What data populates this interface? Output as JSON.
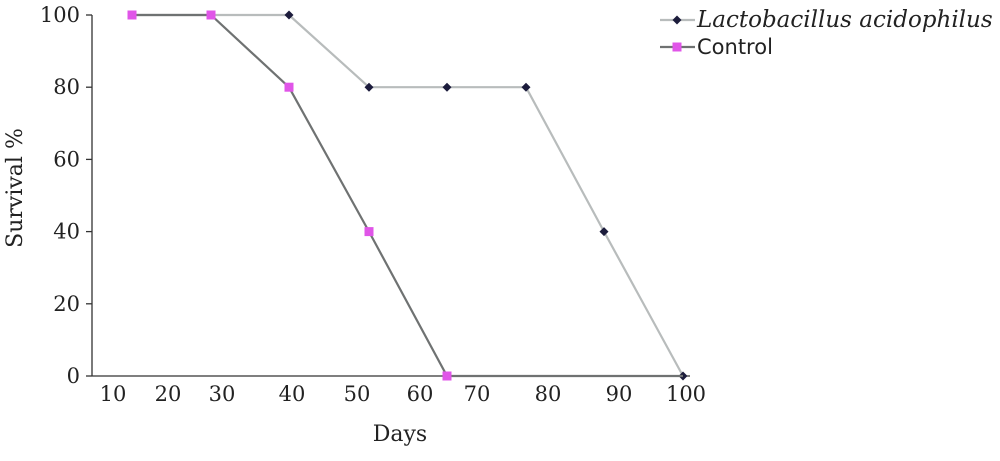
{
  "chart_data": {
    "type": "line",
    "xlabel": "Days",
    "ylabel": "Survival %",
    "xticks": [
      10,
      20,
      30,
      40,
      50,
      60,
      70,
      80,
      90,
      100
    ],
    "yticks": [
      0,
      20,
      40,
      60,
      80,
      100
    ],
    "xlim": [
      5,
      100
    ],
    "ylim": [
      0,
      100
    ],
    "grid": false,
    "legend_position": "top-right",
    "series": [
      {
        "name": "Lactobacillus acidophilus",
        "name_style": "italic",
        "color": "#b8bcbc",
        "marker": "diamond",
        "marker_color": "#1c1c3c",
        "x": [
          10,
          30,
          40,
          51,
          62,
          74,
          85,
          96
        ],
        "y": [
          100,
          100,
          100,
          80,
          80,
          80,
          40,
          0
        ]
      },
      {
        "name": "Control",
        "name_style": "normal",
        "color": "#6f7272",
        "marker": "square",
        "marker_color": "#e055e8",
        "x": [
          10,
          20,
          30,
          40,
          51,
          62,
          96
        ],
        "y": [
          100,
          100,
          100,
          80,
          40,
          0,
          0
        ]
      }
    ]
  }
}
